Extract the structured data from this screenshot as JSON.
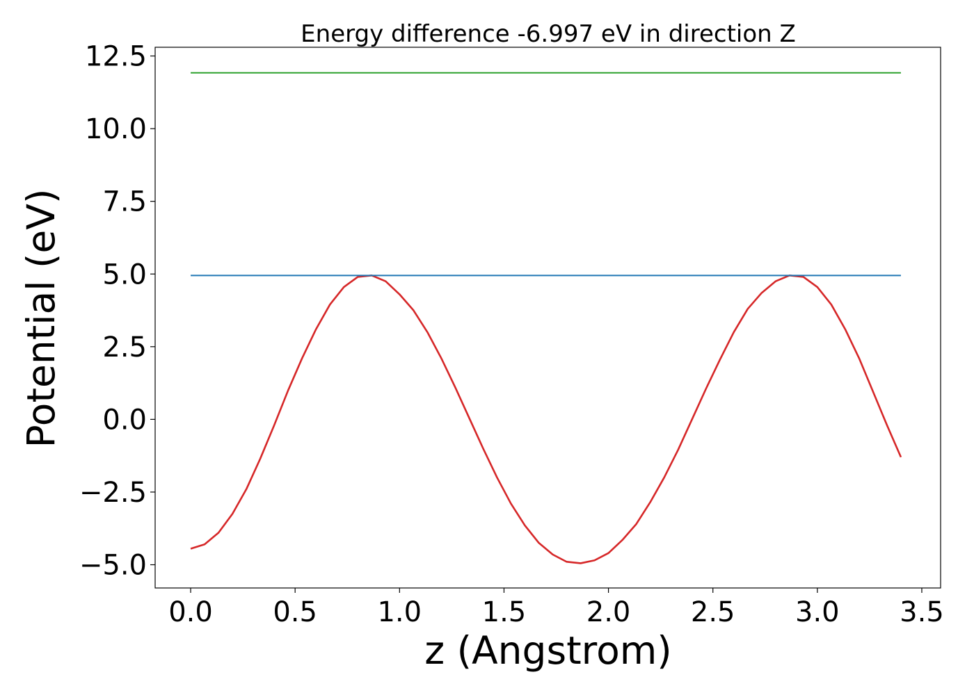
{
  "chart_data": {
    "type": "line",
    "title": "Energy difference -6.997 eV in direction Z",
    "xlabel": "z (Angstrom)",
    "ylabel": "Potential (eV)",
    "xlim": [
      -0.17,
      3.59
    ],
    "ylim": [
      -5.8,
      12.8
    ],
    "grid": false,
    "x_ticks": [
      {
        "value": 0.0,
        "label": "0.0"
      },
      {
        "value": 0.5,
        "label": "0.5"
      },
      {
        "value": 1.0,
        "label": "1.0"
      },
      {
        "value": 1.5,
        "label": "1.5"
      },
      {
        "value": 2.0,
        "label": "2.0"
      },
      {
        "value": 2.5,
        "label": "2.5"
      },
      {
        "value": 3.0,
        "label": "3.0"
      },
      {
        "value": 3.5,
        "label": "3.5"
      }
    ],
    "y_ticks": [
      {
        "value": -5.0,
        "label": "−5.0"
      },
      {
        "value": -2.5,
        "label": "−2.5"
      },
      {
        "value": 0.0,
        "label": "0.0"
      },
      {
        "value": 2.5,
        "label": "2.5"
      },
      {
        "value": 5.0,
        "label": "5.0"
      },
      {
        "value": 7.5,
        "label": "7.5"
      },
      {
        "value": 10.0,
        "label": "10.0"
      },
      {
        "value": 12.5,
        "label": "12.5"
      }
    ],
    "series": [
      {
        "color": "#d62728",
        "x": [
          0.0,
          0.0667,
          0.1333,
          0.2,
          0.2667,
          0.3333,
          0.4,
          0.4667,
          0.5333,
          0.6,
          0.6667,
          0.7333,
          0.8,
          0.8667,
          0.9333,
          1.0,
          1.0667,
          1.1333,
          1.2,
          1.2667,
          1.3333,
          1.4,
          1.4667,
          1.5333,
          1.6,
          1.6667,
          1.7333,
          1.8,
          1.8667,
          1.9333,
          2.0,
          2.0667,
          2.1333,
          2.2,
          2.2667,
          2.3333,
          2.4,
          2.4667,
          2.5333,
          2.6,
          2.6667,
          2.7333,
          2.8,
          2.8667,
          2.9333,
          3.0,
          3.0667,
          3.1333,
          3.2,
          3.2667,
          3.3333,
          3.4
        ],
        "y": [
          -4.45,
          -4.3,
          -3.9,
          -3.25,
          -2.4,
          -1.35,
          -0.2,
          1.0,
          2.1,
          3.1,
          3.95,
          4.55,
          4.9,
          4.95,
          4.75,
          4.3,
          3.75,
          3.0,
          2.1,
          1.1,
          0.05,
          -1.0,
          -2.0,
          -2.9,
          -3.65,
          -4.25,
          -4.65,
          -4.9,
          -4.95,
          -4.85,
          -4.6,
          -4.15,
          -3.6,
          -2.85,
          -2.0,
          -1.05,
          0.0,
          1.05,
          2.05,
          3.0,
          3.8,
          4.35,
          4.75,
          4.95,
          4.9,
          4.55,
          3.95,
          3.1,
          2.1,
          0.95,
          -0.2,
          -1.3
        ]
      },
      {
        "color": "#1f77b4",
        "x": [
          0.0,
          3.4
        ],
        "y": [
          4.95,
          4.95
        ]
      },
      {
        "color": "#2ca02c",
        "x": [
          0.0,
          3.4
        ],
        "y": [
          11.92,
          11.92
        ]
      }
    ]
  }
}
